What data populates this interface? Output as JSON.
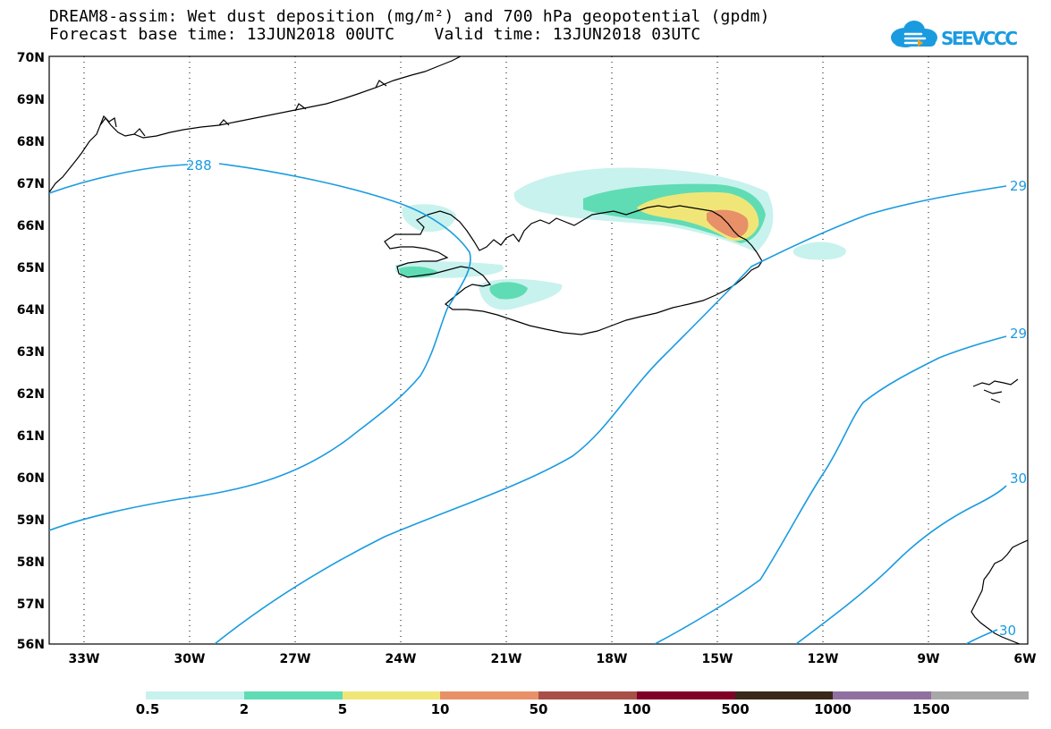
{
  "header": {
    "title_line1": "DREAM8-assim: Wet dust deposition (mg/m²) and 700 hPa geopotential (gpdm)",
    "title_line2": "Forecast base time: 13JUN2018 00UTC    Valid time: 13JUN2018 03UTC",
    "logo_text": "SEEVCCC"
  },
  "map": {
    "lat_labels": [
      "70N",
      "69N",
      "68N",
      "67N",
      "66N",
      "65N",
      "64N",
      "63N",
      "62N",
      "61N",
      "60N",
      "59N",
      "58N",
      "57N",
      "56N"
    ],
    "lon_labels": [
      "33W",
      "30W",
      "27W",
      "24W",
      "21W",
      "18W",
      "15W",
      "12W",
      "9W",
      "6W"
    ],
    "contour_labels": [
      "288",
      "29",
      "29",
      "30",
      "30"
    ],
    "colors": {
      "contour": "#1a9be0",
      "dust_0_5": "#c8f2ee",
      "dust_2": "#5fdcb4",
      "dust_5": "#f0e678",
      "dust_10": "#e89068"
    }
  },
  "legend": {
    "labels": [
      "0.5",
      "2",
      "5",
      "10",
      "50",
      "100",
      "500",
      "1000",
      "1500"
    ],
    "colors": [
      "#c8f2ee",
      "#5fdcb4",
      "#f0e678",
      "#e89068",
      "#a85048",
      "#800028",
      "#3a2818",
      "#9070a0",
      "#a8a8a8"
    ]
  }
}
